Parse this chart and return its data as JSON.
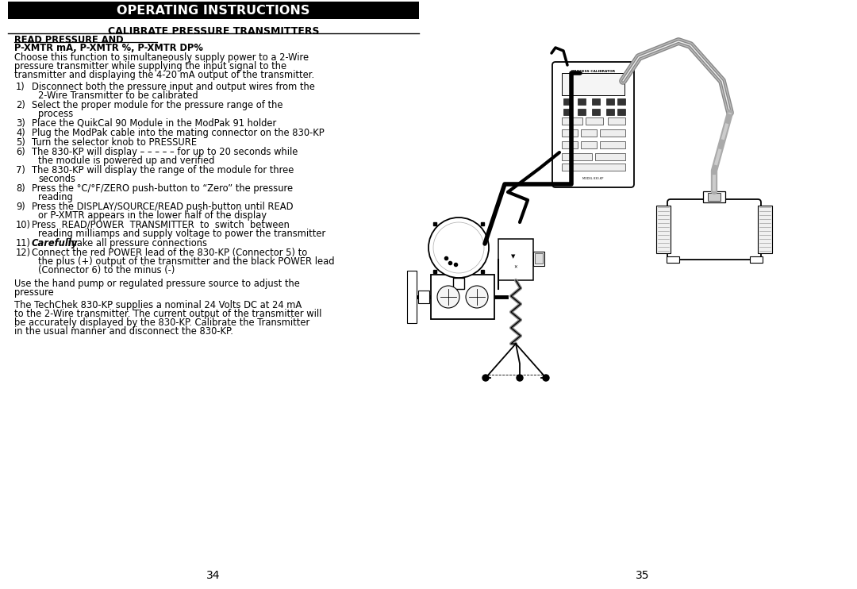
{
  "page_bg": "#ffffff",
  "header_bg": "#000000",
  "header_text": "OPERATING INSTRUCTIONS",
  "header_text_color": "#ffffff",
  "subheader_text": "CALIBRATE PRESSURE TRANSMITTERS",
  "section_title1": "READ PRESSURE AND",
  "section_title2": "P-XMTR mA, P-XMTR %, P-XMTR DP%",
  "intro_lines": [
    "Choose this function to simultaneously supply power to a 2-Wire",
    "pressure transmitter while supplying the input signal to the",
    "transmitter and displaying the 4-20 mA output of the transmitter."
  ],
  "items": [
    [
      "Disconnect both the pressure input and output wires from the",
      "2-Wire Transmitter to be calibrated"
    ],
    [
      "Select the proper module for the pressure range of the",
      "process"
    ],
    [
      "Place the QuikCal 90 Module in the ModPak 91 holder"
    ],
    [
      "Plug the ModPak cable into the mating connector on the 830-KP"
    ],
    [
      "Turn the selector knob to PRESSURE"
    ],
    [
      "The 830-KP will display – – – – – for up to 20 seconds while",
      "the module is powered up and verified"
    ],
    [
      "The 830-KP will display the range of the module for three",
      "seconds"
    ],
    [
      "Press the °C/°F/ZERO push-button to “Zero” the pressure",
      "reading"
    ],
    [
      "Press the DISPLAY/SOURCE/READ push-button until READ",
      "or P-XMTR appears in the lower half of the display"
    ],
    [
      "Press  READ/POWER  TRANSMITTER  to  switch  between",
      "reading milliamps and supply voltage to power the transmitter"
    ],
    [
      "[italic]Carefully[/italic] make all pressure connections"
    ],
    [
      "Connect the red POWER lead of the 830-KP (Connector 5) to",
      "the plus (+) output of the transmitter and the black POWER lead",
      "(Connector 6) to the minus (-)"
    ]
  ],
  "footer_paras": [
    [
      "Use the hand pump or regulated pressure source to adjust the",
      "pressure"
    ],
    [
      "The TechChek 830-KP supplies a nominal 24 Volts DC at 24 mA",
      "to the 2-Wire transmitter. The current output of the transmitter will",
      "be accurately displayed by the 830-KP. Calibrate the Transmitter",
      "in the usual manner and disconnect the 830-KP."
    ]
  ],
  "page_num_left": "34",
  "page_num_right": "35"
}
